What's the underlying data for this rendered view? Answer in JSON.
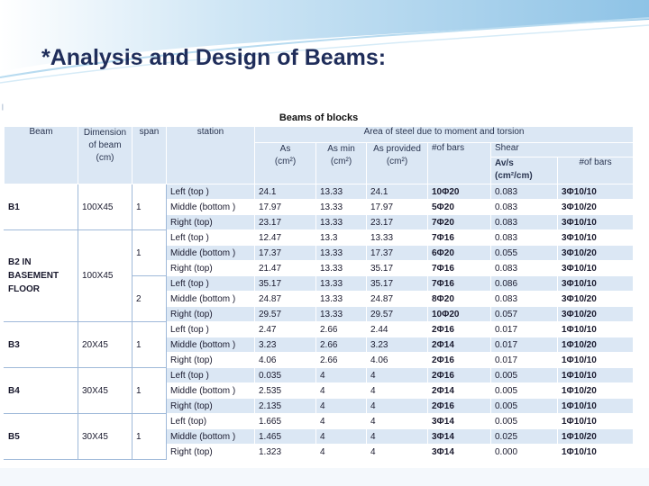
{
  "slide": {
    "title": "*Analysis and Design of Beams:"
  },
  "table": {
    "caption": "Beams of blocks",
    "headers": {
      "beam": "Beam",
      "dimension_line1": "Dimension",
      "dimension_line2": "of beam",
      "dimension_line3": "(cm)",
      "span": "span",
      "station": "station",
      "area_group": "Area of steel due to moment and torsion",
      "as": "As",
      "as_unit": "(cm²)",
      "as_min": "As min",
      "as_min_unit": "(cm²)",
      "as_provided": "As provided",
      "as_provided_unit": "(cm²)",
      "of_bars": "#of bars",
      "shear": "Shear",
      "avs_line1": "Av/s",
      "avs_line2": "(cm²/cm)",
      "shear_bars": "#of bars"
    },
    "rows": [
      {
        "station": "Left (top )",
        "as": "24.1",
        "as_min": "13.33",
        "as_provided": "24.1",
        "bars": "10Φ20",
        "avs": "0.083",
        "shear_bars": "3Φ10/10"
      },
      {
        "station": "Middle (bottom )",
        "as": "17.97",
        "as_min": "13.33",
        "as_provided": "17.97",
        "bars": "5Φ20",
        "avs": "0.083",
        "shear_bars": "3Φ10/20"
      },
      {
        "station": "Right (top)",
        "as": "23.17",
        "as_min": "13.33",
        "as_provided": "23.17",
        "bars": "7Φ20",
        "avs": "0.083",
        "shear_bars": "3Φ10/10"
      },
      {
        "station": "Left (top )",
        "as": "12.47",
        "as_min": "13.3",
        "as_provided": "13.33",
        "bars": "7Φ16",
        "avs": "0.083",
        "shear_bars": "3Φ10/10"
      },
      {
        "station": "Middle (bottom )",
        "as": "17.37",
        "as_min": "13.33",
        "as_provided": "17.37",
        "bars": "6Φ20",
        "avs": "0.055",
        "shear_bars": "3Φ10/20"
      },
      {
        "station": "Right (top)",
        "as": "21.47",
        "as_min": "13.33",
        "as_provided": "35.17",
        "bars": "7Φ16",
        "avs": "0.083",
        "shear_bars": "3Φ10/10"
      },
      {
        "station": "Left (top )",
        "as": "35.17",
        "as_min": "13.33",
        "as_provided": "35.17",
        "bars": "7Φ16",
        "avs": "0.086",
        "shear_bars": "3Φ10/10"
      },
      {
        "station": "Middle (bottom )",
        "as": "24.87",
        "as_min": "13.33",
        "as_provided": "24.87",
        "bars": "8Φ20",
        "avs": "0.083",
        "shear_bars": "3Φ10/20"
      },
      {
        "station": "Right (top)",
        "as": "29.57",
        "as_min": "13.33",
        "as_provided": "29.57",
        "bars": "10Φ20",
        "avs": "0.057",
        "shear_bars": "3Φ10/20"
      },
      {
        "station": "Left (top )",
        "as": "2.47",
        "as_min": "2.66",
        "as_provided": "2.44",
        "bars": "2Φ16",
        "avs": "0.017",
        "shear_bars": "1Φ10/10"
      },
      {
        "station": "Middle (bottom )",
        "as": "3.23",
        "as_min": "2.66",
        "as_provided": "3.23",
        "bars": "2Φ14",
        "avs": "0.017",
        "shear_bars": "1Φ10/20"
      },
      {
        "station": "Right (top)",
        "as": "4.06",
        "as_min": "2.66",
        "as_provided": "4.06",
        "bars": "2Φ16",
        "avs": "0.017",
        "shear_bars": "1Φ10/10"
      },
      {
        "station": "Left (top )",
        "as": "0.035",
        "as_min": "4",
        "as_provided": "4",
        "bars": "2Φ16",
        "avs": "0.005",
        "shear_bars": "1Φ10/10"
      },
      {
        "station": "Middle (bottom )",
        "as": "2.535",
        "as_min": "4",
        "as_provided": "4",
        "bars": "2Φ14",
        "avs": "0.005",
        "shear_bars": "1Φ10/20"
      },
      {
        "station": "Right (top)",
        "as": "2.135",
        "as_min": "4",
        "as_provided": "4",
        "bars": "2Φ16",
        "avs": "0.005",
        "shear_bars": "1Φ10/10"
      },
      {
        "station": "Left (top)",
        "as": "1.665",
        "as_min": "4",
        "as_provided": "4",
        "bars": "3Φ14",
        "avs": "0.005",
        "shear_bars": "1Φ10/10"
      },
      {
        "station": "Middle (bottom )",
        "as": "1.465",
        "as_min": "4",
        "as_provided": "4",
        "bars": "3Φ14",
        "avs": "0.025",
        "shear_bars": "1Φ10/20"
      },
      {
        "station": "Right (top)",
        "as": "1.323",
        "as_min": "4",
        "as_provided": "4",
        "bars": "3Φ14",
        "avs": "0.000",
        "shear_bars": "1Φ10/10"
      }
    ],
    "groups": [
      {
        "beam": "B1",
        "dimension": "100X45",
        "spans": [
          {
            "span": "1",
            "rows": [
              0,
              1,
              2
            ]
          }
        ]
      },
      {
        "beam": "B2 IN BASEMENT FLOOR",
        "dimension": "100X45",
        "spans": [
          {
            "span": "1",
            "rows": [
              3,
              4,
              5
            ]
          },
          {
            "span": "2",
            "rows": [
              6,
              7,
              8
            ]
          }
        ]
      },
      {
        "beam": "B3",
        "dimension": "20X45",
        "spans": [
          {
            "span": "1",
            "rows": [
              9,
              10,
              11
            ]
          }
        ]
      },
      {
        "beam": "B4",
        "dimension": "30X45",
        "spans": [
          {
            "span": "1",
            "rows": [
              12,
              13,
              14
            ]
          }
        ]
      },
      {
        "beam": "B5",
        "dimension": "30X45",
        "spans": [
          {
            "span": "1",
            "rows": [
              15,
              16,
              17
            ]
          }
        ]
      }
    ]
  },
  "colors": {
    "title": "#1f2d5a",
    "header_bg": "#dbe7f4",
    "band_bg": "#dbe7f4",
    "wave": "#8ec3e6"
  }
}
